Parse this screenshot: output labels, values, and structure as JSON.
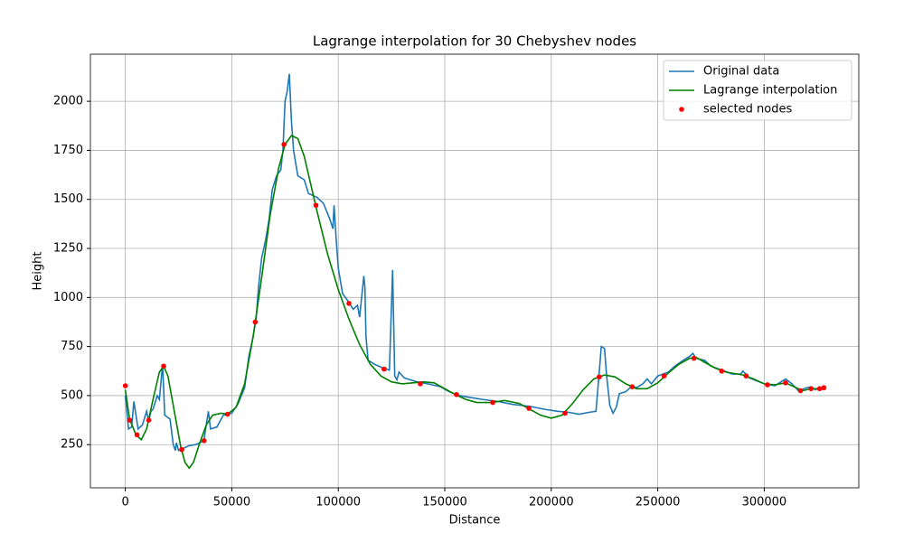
{
  "chart_data": {
    "type": "line",
    "title": "Lagrange interpolation for 30 Chebyshev nodes",
    "xlabel": "Distance",
    "ylabel": "Height",
    "xlim": [
      -16400,
      344400
    ],
    "ylim": [
      30,
      2240
    ],
    "xticks": [
      0,
      50000,
      100000,
      150000,
      200000,
      250000,
      300000
    ],
    "yticks": [
      250,
      500,
      750,
      1000,
      1250,
      1500,
      1750,
      2000
    ],
    "grid": true,
    "legend": "upper right",
    "series": [
      {
        "name": "Original data",
        "type": "line",
        "color": "#1f77b4",
        "x": [
          0,
          1500,
          3000,
          4000,
          6000,
          8000,
          10000,
          11000,
          12000,
          13000,
          15000,
          16000,
          17500,
          18500,
          21000,
          22500,
          23500,
          24000,
          25000,
          27000,
          30000,
          33000,
          36000,
          37000,
          39000,
          40000,
          43000,
          46000,
          50000,
          53000,
          56000,
          58000,
          60000,
          61500,
          62500,
          64000,
          66000,
          67500,
          69000,
          71000,
          73000,
          74000,
          75000,
          76000,
          77000,
          78000,
          79000,
          81000,
          84000,
          86000,
          90000,
          93000,
          96000,
          97500,
          98000,
          99000,
          100000,
          102000,
          104000,
          107000,
          109000,
          110000,
          112000,
          112500,
          113000,
          114000,
          117000,
          121000,
          124000,
          125500,
          126500,
          127500,
          128500,
          131000,
          137000,
          142000,
          148000,
          152000,
          157000,
          162000,
          168000,
          175000,
          182000,
          190000,
          197000,
          203000,
          208000,
          213000,
          218000,
          221000,
          222000,
          223500,
          225000,
          226000,
          227500,
          229000,
          230500,
          232000,
          235000,
          238000,
          240000,
          243000,
          245000,
          247000,
          250000,
          255000,
          258000,
          262000,
          265000,
          266500,
          268000,
          272000,
          275000,
          280000,
          285000,
          289000,
          290000,
          293000,
          300000,
          305000,
          310000,
          313000,
          316000,
          320000,
          322000,
          324000,
          326000,
          328000
        ],
        "values": [
          500,
          330,
          340,
          470,
          330,
          350,
          420,
          370,
          420,
          430,
          500,
          480,
          660,
          400,
          380,
          250,
          220,
          260,
          220,
          230,
          245,
          250,
          265,
          280,
          420,
          330,
          340,
          400,
          410,
          460,
          540,
          700,
          800,
          900,
          1050,
          1200,
          1300,
          1400,
          1550,
          1620,
          1650,
          1750,
          2000,
          2050,
          2140,
          1900,
          1750,
          1620,
          1600,
          1530,
          1510,
          1480,
          1400,
          1350,
          1470,
          1300,
          1150,
          1020,
          990,
          940,
          960,
          900,
          1110,
          1050,
          800,
          680,
          660,
          640,
          630,
          1140,
          600,
          580,
          620,
          590,
          570,
          560,
          545,
          520,
          500,
          490,
          480,
          470,
          455,
          445,
          430,
          420,
          415,
          405,
          415,
          420,
          550,
          750,
          740,
          600,
          450,
          410,
          440,
          510,
          520,
          550,
          540,
          560,
          585,
          560,
          600,
          620,
          650,
          680,
          700,
          715,
          690,
          680,
          650,
          630,
          610,
          610,
          625,
          590,
          560,
          550,
          585,
          560,
          525,
          540,
          545,
          530,
          540,
          530
        ]
      },
      {
        "name": "Lagrange interpolation",
        "type": "line",
        "color": "#008000",
        "x": [
          0,
          2000,
          5000,
          7500,
          10000,
          13000,
          16000,
          18000,
          20000,
          23000,
          26000,
          28000,
          30000,
          32000,
          35000,
          38000,
          41000,
          45000,
          48000,
          52000,
          56000,
          60000,
          64000,
          68000,
          72000,
          75000,
          78000,
          81000,
          84000,
          87000,
          90000,
          95000,
          100000,
          105000,
          110000,
          115000,
          120000,
          125000,
          130000,
          140000,
          145000,
          150000,
          155000,
          160000,
          165000,
          172000,
          178000,
          185000,
          190000,
          195000,
          200000,
          205000,
          210000,
          215000,
          220000,
          225000,
          230000,
          235000,
          240000,
          245000,
          250000,
          255000,
          260000,
          265000,
          268000,
          272000,
          277000,
          282000,
          290000,
          295000,
          300000,
          305000,
          310000,
          314000,
          318000,
          322000,
          326000,
          328000
        ],
        "values": [
          530,
          380,
          300,
          275,
          330,
          480,
          620,
          650,
          600,
          420,
          240,
          160,
          130,
          160,
          260,
          350,
          400,
          410,
          405,
          440,
          560,
          800,
          1100,
          1420,
          1660,
          1780,
          1825,
          1810,
          1720,
          1580,
          1440,
          1220,
          1040,
          890,
          760,
          660,
          600,
          570,
          560,
          570,
          565,
          535,
          505,
          480,
          465,
          465,
          475,
          460,
          430,
          400,
          385,
          400,
          460,
          530,
          585,
          605,
          595,
          560,
          535,
          535,
          565,
          615,
          660,
          690,
          695,
          670,
          640,
          620,
          605,
          585,
          560,
          555,
          565,
          545,
          525,
          535,
          535,
          540
        ]
      },
      {
        "name": "selected nodes",
        "type": "scatter",
        "color": "#ff0000",
        "x": [
          0,
          2000,
          5500,
          11000,
          18000,
          26500,
          37000,
          48000,
          61000,
          74500,
          89500,
          105000,
          121500,
          138500,
          155500,
          172500,
          189500,
          206500,
          222500,
          238000,
          253000,
          267000,
          280000,
          291500,
          301500,
          310000,
          317000,
          322000,
          326000,
          328000
        ],
        "values": [
          550,
          375,
          300,
          375,
          650,
          225,
          270,
          405,
          875,
          1780,
          1470,
          970,
          635,
          560,
          505,
          465,
          435,
          410,
          595,
          545,
          600,
          690,
          625,
          600,
          555,
          565,
          525,
          535,
          535,
          540
        ]
      }
    ]
  }
}
